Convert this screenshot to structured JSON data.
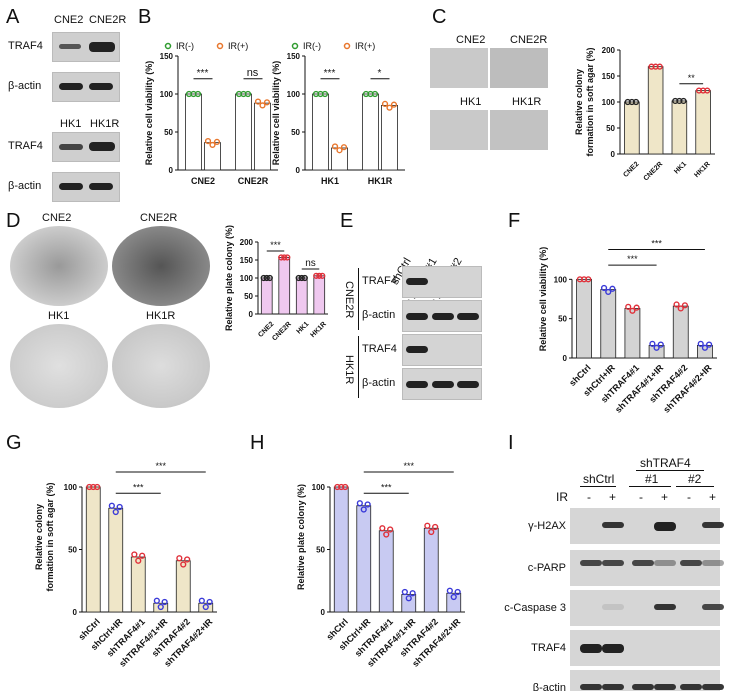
{
  "panels": {
    "A": "A",
    "B": "B",
    "C": "C",
    "D": "D",
    "E": "E",
    "F": "F",
    "G": "G",
    "H": "H",
    "I": "I"
  },
  "panelA": {
    "lines_top": [
      "CNE2",
      "CNE2R"
    ],
    "lines_bottom": [
      "HK1",
      "HK1R"
    ],
    "rows": [
      "TRAF4",
      "β-actin"
    ]
  },
  "panelC": {
    "images": [
      "CNE2",
      "CNE2R",
      "HK1",
      "HK1R"
    ]
  },
  "panelD": {
    "images": [
      "CNE2",
      "CNE2R",
      "HK1",
      "HK1R"
    ]
  },
  "panelE": {
    "lanes": [
      "shCtrl",
      "shTRAF4#1",
      "shTRAF4#2"
    ],
    "groups": [
      "CNE2R",
      "HK1R"
    ],
    "rows": [
      "TRAF4",
      "β-actin"
    ]
  },
  "panelI": {
    "header": "shTRAF4",
    "groups": [
      "shCtrl",
      "#1",
      "#2"
    ],
    "ir_label": "IR",
    "ir": [
      "-",
      "+",
      "-",
      "+",
      "-",
      "+"
    ],
    "rows": [
      "γ-H2AX",
      "c-PARP",
      "c-Caspase 3",
      "TRAF4",
      "β-actin"
    ]
  },
  "colors": {
    "green": "#2e9b2e",
    "orange": "#e8762c",
    "red": "#e0303a",
    "blue": "#3a3ad8",
    "tan": "#efe6c8",
    "pink": "#efc8ef",
    "grey": "#d3d3d3",
    "lavender": "#c8caf2"
  },
  "chart_data": [
    {
      "id": "B1",
      "type": "bar",
      "ylabel": "Relative cell viability (%)",
      "ylim": [
        0,
        150
      ],
      "yticks": [
        0,
        50,
        100,
        150
      ],
      "legend": [
        "IR(-)",
        "IR(+)"
      ],
      "legend_placement": "top",
      "categories": [
        "CNE2",
        "CNE2R"
      ],
      "series": [
        {
          "name": "IR(-)",
          "values": [
            100,
            100
          ]
        },
        {
          "name": "IR(+)",
          "values": [
            36,
            88
          ]
        }
      ],
      "annotations": [
        "***",
        "ns"
      ]
    },
    {
      "id": "B2",
      "type": "bar",
      "ylabel": "Relative cell viability (%)",
      "ylim": [
        0,
        150
      ],
      "yticks": [
        0,
        50,
        100,
        150
      ],
      "legend": [
        "IR(-)",
        "IR(+)"
      ],
      "legend_placement": "top",
      "categories": [
        "HK1",
        "HK1R"
      ],
      "series": [
        {
          "name": "IR(-)",
          "values": [
            100,
            100
          ]
        },
        {
          "name": "IR(+)",
          "values": [
            29,
            85
          ]
        }
      ],
      "annotations": [
        "***",
        "*"
      ]
    },
    {
      "id": "C",
      "type": "bar",
      "ylabel": "Relative colony formation in soft agar (%)",
      "ylim": [
        0,
        200
      ],
      "yticks": [
        0,
        50,
        100,
        150,
        200
      ],
      "categories": [
        "CNE2",
        "CNE2R",
        "HK1",
        "HK1R"
      ],
      "values": [
        100,
        168,
        102,
        122
      ],
      "annotations": [
        "**"
      ]
    },
    {
      "id": "D",
      "type": "bar",
      "ylabel": "Relative plate colony (%)",
      "ylim": [
        0,
        200
      ],
      "yticks": [
        0,
        50,
        100,
        150,
        200
      ],
      "categories": [
        "CNE2",
        "CNE2R",
        "HK1",
        "HK1R"
      ],
      "values": [
        100,
        157,
        100,
        106
      ],
      "annotations": [
        "***",
        "ns"
      ]
    },
    {
      "id": "F",
      "type": "bar",
      "ylabel": "Relative cell viability (%)",
      "ylim": [
        0,
        150
      ],
      "yticks": [
        0,
        50,
        100
      ],
      "categories": [
        "shCtrl",
        "shCtrl+IR",
        "shTRAF4#1",
        "shTRAF4#1+IR",
        "shTRAF4#2",
        "shTRAF4#2+IR"
      ],
      "values": [
        100,
        87,
        63,
        16,
        66,
        16
      ],
      "annotations": [
        "***",
        "***"
      ]
    },
    {
      "id": "G",
      "type": "bar",
      "ylabel": "Relative colony formation in soft agar (%)",
      "ylim": [
        0,
        120
      ],
      "yticks": [
        0,
        50,
        100
      ],
      "categories": [
        "shCtrl",
        "shCtrl+IR",
        "shTRAF4#1",
        "shTRAF4#1+IR",
        "shTRAF4#2",
        "shTRAF4#2+IR"
      ],
      "values": [
        100,
        83,
        44,
        7,
        41,
        7
      ],
      "annotations": [
        "***",
        "***"
      ]
    },
    {
      "id": "H",
      "type": "bar",
      "ylabel": "Relative plate colony (%)",
      "ylim": [
        0,
        120
      ],
      "yticks": [
        0,
        50,
        100
      ],
      "categories": [
        "shCtrl",
        "shCtrl+IR",
        "shTRAF4#1",
        "shTRAF4#1+IR",
        "shTRAF4#2",
        "shTRAF4#2+IR"
      ],
      "values": [
        100,
        85,
        65,
        14,
        67,
        15
      ],
      "annotations": [
        "***",
        "***"
      ]
    }
  ]
}
